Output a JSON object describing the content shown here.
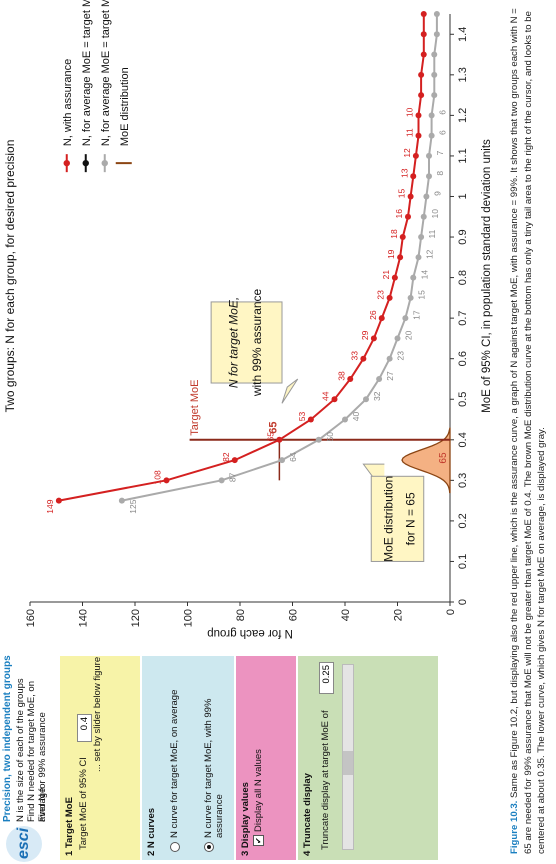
{
  "panel": {
    "title": "Precision, two independent groups",
    "lines": [
      "N is the size of each of the groups",
      "Find N needed for target MoE, on average",
      "Find N for 99% assurance"
    ],
    "logo": "esci",
    "target": {
      "header": "1 Target MoE",
      "label": "Target MoE of 95% CI",
      "value": "0.4",
      "note": "... set by slider below figure",
      "color": "#f7f3a8"
    },
    "curves": {
      "header": "2 N curves",
      "opt1": "N curve for target MoE, on average",
      "opt2": "N curve for target MoE, with 99% assurance",
      "color": "#cde8ef"
    },
    "display": {
      "header": "3 Display values",
      "check": "Display all N values",
      "color": "#ec93c0"
    },
    "truncate": {
      "header": "4 Truncate display",
      "label": "Truncate display at target MoE of",
      "value": "0.25",
      "color": "#c9dfb6"
    }
  },
  "chart_data": {
    "type": "line",
    "title": "Two groups: N for each group, for desired precision",
    "xlabel": "MoE of 95% CI, in population standard deviation units",
    "ylabel": "N for each group",
    "xlim": [
      0,
      1.45
    ],
    "ylim": [
      0,
      160
    ],
    "xticks": [
      "0",
      "0.1",
      "0.2",
      "0.3",
      "0.4",
      "0.5",
      "0.6",
      "0.7",
      "0.8",
      "0.9",
      "1",
      "1.1",
      "1.2",
      "1.3",
      "1.4"
    ],
    "yticks": [
      "0",
      "20",
      "40",
      "60",
      "80",
      "100",
      "120",
      "140",
      "160"
    ],
    "target_moe": 0.4,
    "target_label": "Target MoE",
    "series": [
      {
        "name": "N, with assurance",
        "color": "#d42020",
        "x": [
          0.25,
          0.3,
          0.35,
          0.4,
          0.45,
          0.5,
          0.55,
          0.6,
          0.65,
          0.7,
          0.75,
          0.8,
          0.85,
          0.9,
          0.95,
          1.0,
          1.05,
          1.1,
          1.15,
          1.2,
          1.25,
          1.3,
          1.35,
          1.4,
          1.45
        ],
        "values": [
          149,
          108,
          82,
          65,
          53,
          44,
          38,
          33,
          29,
          26,
          23,
          21,
          19,
          18,
          16,
          15,
          14,
          13,
          12,
          12,
          11,
          11,
          10,
          10,
          10
        ]
      },
      {
        "name": "N, for average MoE = target MoE",
        "color": "#111111",
        "x": [],
        "values": []
      },
      {
        "name": "N, for average MoE = target MoE",
        "color": "#aaaaaa",
        "x": [
          0.25,
          0.3,
          0.35,
          0.4,
          0.45,
          0.5,
          0.55,
          0.6,
          0.65,
          0.7,
          0.75,
          0.8,
          0.85,
          0.9,
          0.95,
          1.0,
          1.05,
          1.1,
          1.15,
          1.2,
          1.25,
          1.3,
          1.35,
          1.4,
          1.45
        ],
        "values": [
          125,
          87,
          64,
          50,
          40,
          32,
          27,
          23,
          20,
          17,
          15,
          14,
          12,
          11,
          10,
          9,
          8,
          8,
          7,
          7,
          6,
          6,
          6,
          5,
          5
        ]
      },
      {
        "name": "MoE distribution",
        "color": "#8b4513",
        "x": [],
        "values": []
      }
    ],
    "red_labels": [
      "149",
      "108",
      "82",
      "65",
      "53",
      "44",
      "38",
      "33",
      "29",
      "26",
      "23",
      "21",
      "19",
      "18",
      "16",
      "15",
      "13",
      "12",
      "11",
      "10"
    ],
    "gray_labels": [
      "125",
      "87",
      "64",
      "50",
      "40",
      "32",
      "27",
      "23",
      "20",
      "17",
      "15",
      "14",
      "12",
      "11",
      "10",
      "9",
      "8",
      "7",
      "6",
      "6"
    ],
    "callouts": {
      "a1": "N for target MoE,",
      "a2": "with 99% assurance",
      "b1": "MoE distribution",
      "b2": "for N = 65",
      "dist_n": "65",
      "marker_n": "65"
    }
  },
  "caption": {
    "label": "Figure 10.3.",
    "text": "Same as Figure 10.2, but displaying also the red upper line, which is the assurance curve, a graph of N against target MoE, with assurance = 99%. It shows that two groups each with N = 65 are needed for 99% assurance that MoE will not be greater than target MoE of 0.4. The brown MoE distribution curve at the bottom has only a tiny tail area to the right of the cursor, and looks to be centered at about 0.35. The lower curve, which gives N for target MoE on average, is displayed gray."
  }
}
